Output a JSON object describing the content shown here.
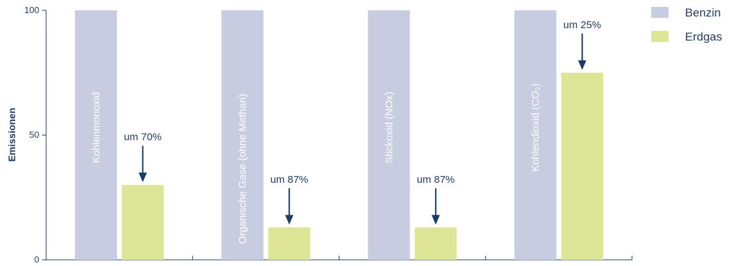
{
  "chart_data": {
    "type": "bar",
    "ylabel": "Emissionen",
    "ylim": [
      0,
      100
    ],
    "yticks": [
      0,
      50,
      100
    ],
    "categories": [
      "Kohlenmonoxid",
      "Organische Gase (ohne Methan)",
      "Stickoxid (NOx)",
      "Kohlendioxid (CO₂)"
    ],
    "series": [
      {
        "name": "Benzin",
        "color": "#c8cce0",
        "values": [
          100,
          100,
          100,
          100
        ]
      },
      {
        "name": "Erdgas",
        "color": "#dde597",
        "values": [
          30,
          13,
          13,
          75
        ]
      }
    ],
    "annotations": [
      "um 70%",
      "um 87%",
      "um 87%",
      "um 25%"
    ],
    "legend_position": "top-right",
    "axis_color": "#1d3d6b",
    "arrow_color": "#133d6b"
  }
}
